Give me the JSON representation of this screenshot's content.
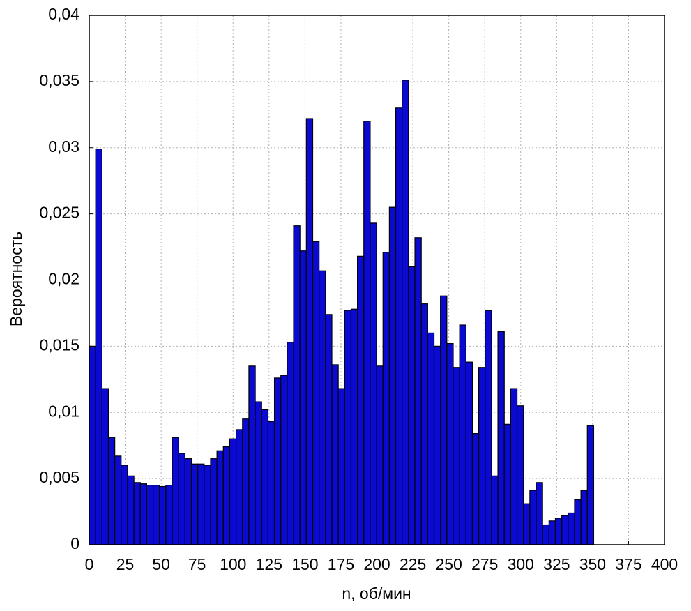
{
  "chart_data": {
    "type": "histogram",
    "xlabel": "n, об/мин",
    "ylabel": "Вероятность",
    "bins": [
      0,
      4.44,
      8.88,
      13.32,
      17.76,
      22.2,
      26.64,
      31.08,
      35.52,
      39.96,
      44.4,
      48.84,
      53.28,
      57.72,
      62.16,
      66.6,
      71.04,
      75.48,
      79.92,
      84.36,
      88.8,
      93.24,
      97.68,
      102.12,
      106.56,
      111,
      115.44,
      119.88,
      124.32,
      128.76,
      133.2,
      137.64,
      142.08,
      146.52,
      150.96,
      155.4,
      159.84,
      164.28,
      168.72,
      173.16,
      177.6,
      182.04,
      186.48,
      190.92,
      195.36,
      199.8,
      204.24,
      208.68,
      213.12,
      217.56,
      222,
      226.44,
      230.88,
      235.32,
      239.76,
      244.2,
      248.64,
      253.08,
      257.52,
      261.96,
      266.4,
      270.84,
      275.28,
      279.72,
      284.16,
      288.6,
      293.04,
      297.48,
      301.92,
      306.36,
      310.8,
      315.24,
      319.68,
      324.12,
      328.56,
      333,
      337.44,
      341.88,
      346.32,
      350.76
    ],
    "values": [
      0.015,
      0.0299,
      0.0118,
      0.0081,
      0.0067,
      0.006,
      0.0052,
      0.0047,
      0.0046,
      0.0045,
      0.0045,
      0.0044,
      0.0045,
      0.0081,
      0.0069,
      0.0065,
      0.0061,
      0.0061,
      0.006,
      0.0065,
      0.0071,
      0.0074,
      0.008,
      0.0087,
      0.0095,
      0.0135,
      0.0108,
      0.0102,
      0.0093,
      0.0126,
      0.0128,
      0.0153,
      0.0241,
      0.0222,
      0.0322,
      0.0229,
      0.0207,
      0.0174,
      0.0136,
      0.0118,
      0.0177,
      0.0178,
      0.0218,
      0.032,
      0.0243,
      0.0135,
      0.0221,
      0.0255,
      0.033,
      0.0351,
      0.021,
      0.0232,
      0.0182,
      0.016,
      0.015,
      0.0188,
      0.0152,
      0.0134,
      0.0166,
      0.0138,
      0.0084,
      0.0134,
      0.0177,
      0.0052,
      0.0161,
      0.0091,
      0.0118,
      0.0105,
      0.0031,
      0.0041,
      0.0047,
      0.0015,
      0.0018,
      0.002,
      0.0022,
      0.0024,
      0.0034,
      0.0041,
      0.009
    ],
    "color": "#0a0ad2",
    "xlim": [
      0,
      400
    ],
    "xticks": [
      0,
      25,
      50,
      75,
      100,
      125,
      150,
      175,
      200,
      225,
      250,
      275,
      300,
      325,
      350,
      375,
      400
    ],
    "ylim": [
      0,
      0.04
    ],
    "yticks": [
      0,
      {
        "value": 0.005,
        "label": "0,005"
      },
      {
        "value": 0.01,
        "label": "0,01"
      },
      {
        "value": 0.015,
        "label": "0,015"
      },
      {
        "value": 0.02,
        "label": "0,02"
      },
      {
        "value": 0.025,
        "label": "0,025"
      },
      {
        "value": 0.03,
        "label": "0,03"
      },
      {
        "value": 0.035,
        "label": "0,035"
      },
      {
        "value": 0.04,
        "label": "0,04"
      }
    ],
    "grid": true
  }
}
